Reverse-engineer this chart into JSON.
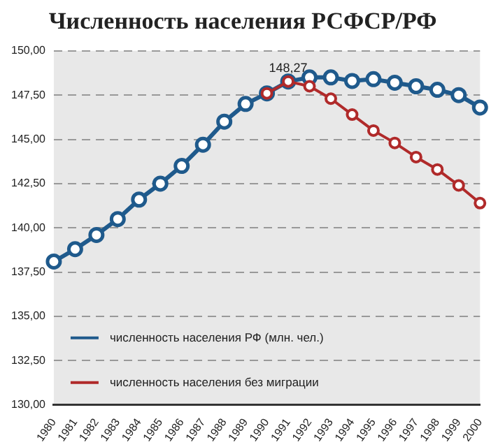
{
  "chart_data": {
    "type": "line",
    "title": "Численность населения РСФСР/РФ",
    "categories": [
      "1980",
      "1981",
      "1982",
      "1983",
      "1984",
      "1985",
      "1986",
      "1987",
      "1988",
      "1989",
      "1990",
      "1991",
      "1992",
      "1993",
      "1994",
      "1995",
      "1996",
      "1997",
      "1998",
      "1999",
      "2000"
    ],
    "series": [
      {
        "name": "численность населения РФ (млн. чел.)",
        "color": "#1f5a8c",
        "values": [
          138.1,
          138.8,
          139.6,
          140.5,
          141.6,
          142.5,
          143.5,
          144.7,
          146.0,
          147.0,
          147.6,
          148.27,
          148.5,
          148.5,
          148.3,
          148.4,
          148.2,
          148.0,
          147.8,
          147.5,
          146.8
        ]
      },
      {
        "name": "численность населения без миграции",
        "color": "#b02a2a",
        "values": [
          null,
          null,
          null,
          null,
          null,
          null,
          null,
          null,
          null,
          null,
          147.6,
          148.27,
          148.0,
          147.3,
          146.4,
          145.5,
          144.8,
          144.0,
          143.3,
          142.4,
          141.4
        ]
      }
    ],
    "annotations": [
      {
        "text": "148,27",
        "x": "1991",
        "y": 148.27
      }
    ],
    "ylim": [
      130,
      150
    ],
    "yticks": [
      {
        "value": 130,
        "label": "130,00"
      },
      {
        "value": 132.5,
        "label": "132,50"
      },
      {
        "value": 135,
        "label": "135,00"
      },
      {
        "value": 137.5,
        "label": "137,50"
      },
      {
        "value": 140,
        "label": "140,00"
      },
      {
        "value": 142.5,
        "label": "142,50"
      },
      {
        "value": 145,
        "label": "145,00"
      },
      {
        "value": 147.5,
        "label": "147,50"
      },
      {
        "value": 150,
        "label": "150,00"
      }
    ],
    "grid": "y",
    "legend": "bottom left",
    "marker": "circle",
    "line_style": "solid"
  }
}
